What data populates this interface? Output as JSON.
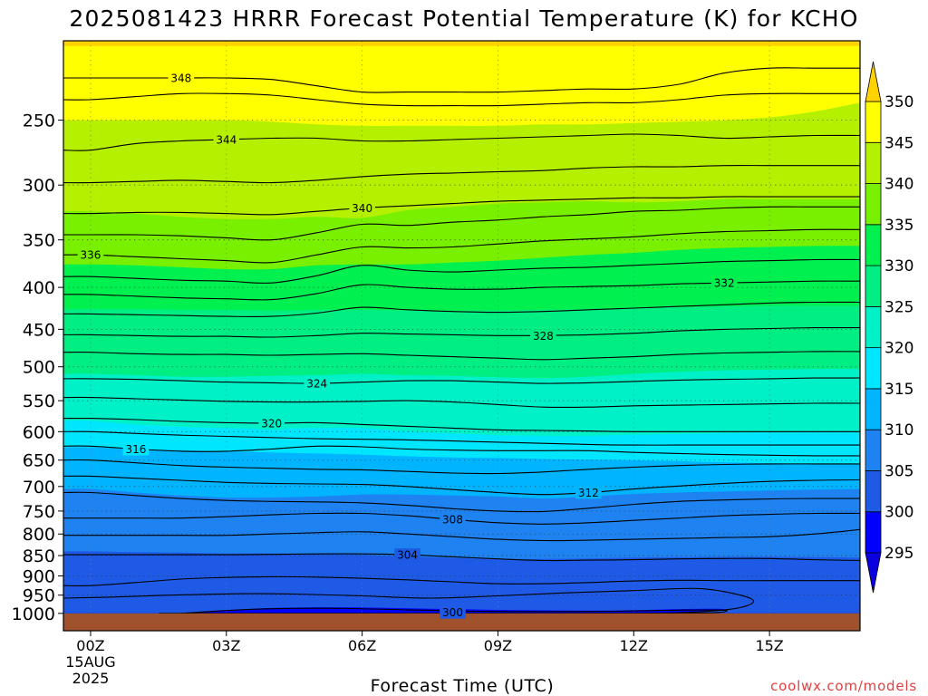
{
  "chart_data": {
    "type": "heatmap",
    "title": "2025081423 HRRR Forecast Potential Temperature (K) for KCHO",
    "xlabel": "Forecast Time (UTC)",
    "ylabel": "",
    "credit": "coolwx.com/models",
    "x_ticks": [
      {
        "hour": 0,
        "label": "00Z",
        "sub": [
          "15AUG",
          "2025"
        ]
      },
      {
        "hour": 3,
        "label": "03Z"
      },
      {
        "hour": 6,
        "label": "06Z"
      },
      {
        "hour": 9,
        "label": "09Z"
      },
      {
        "hour": 12,
        "label": "12Z"
      },
      {
        "hour": 15,
        "label": "15Z"
      }
    ],
    "xlim": [
      -0.6,
      17.0
    ],
    "y_scale": "log",
    "y_inverted": true,
    "ylim": [
      1050,
      200
    ],
    "y_ticks": [
      250,
      300,
      350,
      400,
      450,
      500,
      550,
      600,
      650,
      700,
      750,
      800,
      850,
      900,
      950,
      1000
    ],
    "ground_pressure": 1000,
    "ground_color": "#a0522d",
    "colorbar": {
      "levels": [
        295,
        300,
        305,
        310,
        315,
        320,
        325,
        330,
        335,
        340,
        345,
        350
      ],
      "colors": [
        "#0a00e0",
        "#0000ff",
        "#1e5ae6",
        "#1e82f0",
        "#00b4ff",
        "#00e6ff",
        "#00f0c8",
        "#00ee82",
        "#00f050",
        "#78f000",
        "#b4f000",
        "#ffff00",
        "#ffd200"
      ],
      "extend": "both"
    },
    "bands": [
      {
        "theta": 350,
        "p": [
          203,
          203,
          203,
          203,
          203,
          203,
          203,
          203,
          203,
          203,
          203,
          203,
          203,
          203,
          203,
          203,
          203,
          203
        ]
      },
      {
        "theta": 345,
        "p": [
          250,
          250,
          250,
          250,
          251,
          253,
          254,
          254,
          254,
          254,
          253,
          253,
          252,
          251,
          250,
          248,
          244,
          238
        ]
      },
      {
        "theta": 340,
        "p": [
          323,
          325,
          328,
          330,
          330,
          328,
          329,
          322,
          319,
          316,
          315,
          314,
          315,
          314,
          312,
          312,
          312,
          312
        ]
      },
      {
        "theta": 335,
        "p": [
          375,
          376,
          378,
          380,
          380,
          376,
          375,
          375,
          373,
          371,
          368,
          365,
          363,
          360,
          358,
          357,
          356,
          356
        ]
      },
      {
        "theta": 330,
        "p": [
          425,
          425,
          426,
          426,
          427,
          426,
          426,
          427,
          427,
          427,
          426,
          425,
          424,
          423,
          422,
          421,
          421,
          421
        ]
      },
      {
        "theta": 325,
        "p": [
          510,
          512,
          514,
          514,
          513,
          512,
          510,
          512,
          513,
          515,
          516,
          514,
          510,
          507,
          505,
          504,
          503,
          503
        ]
      },
      {
        "theta": 320,
        "p": [
          582,
          588,
          592,
          594,
          595,
          594,
          594,
          600,
          603,
          606,
          607,
          607,
          605,
          604,
          602,
          601,
          600,
          600
        ]
      },
      {
        "theta": 315,
        "p": [
          627,
          630,
          632,
          634,
          636,
          638,
          640,
          643,
          645,
          646,
          648,
          649,
          650,
          652,
          654,
          656,
          657,
          658
        ]
      },
      {
        "theta": 310,
        "p": [
          705,
          712,
          718,
          722,
          722,
          720,
          716,
          716,
          718,
          720,
          724,
          720,
          715,
          712,
          710,
          708,
          706,
          705
        ]
      },
      {
        "theta": 305,
        "p": [
          840,
          842,
          843,
          845,
          845,
          846,
          848,
          852,
          856,
          858,
          858,
          857,
          855,
          854,
          853,
          853,
          854,
          855
        ]
      },
      {
        "theta": 300,
        "p": [
          1000,
          1000,
          1000,
          1000,
          1000,
          1000,
          1000,
          1000,
          1000,
          1000,
          1000,
          1000,
          1000,
          1000,
          1000,
          1000,
          1000,
          1000
        ]
      }
    ],
    "cold_pool_300": {
      "x": [
        1.8,
        3.0,
        4.0,
        5.5,
        7.5,
        9.5,
        11.5,
        13.0,
        14.0,
        13.2,
        11.0,
        8.0,
        5.0,
        3.0,
        2.0
      ],
      "p": [
        1000,
        992,
        985,
        983,
        987,
        991,
        992,
        988,
        988,
        998,
        1000,
        1000,
        1000,
        1000,
        1000
      ]
    },
    "contours": [
      {
        "theta": 348,
        "p": [
          222,
          222,
          222,
          222,
          223,
          227,
          231,
          231,
          231,
          231,
          230,
          229,
          229,
          226,
          219,
          216,
          216,
          216
        ],
        "label_x": 2.0
      },
      {
        "theta": 346,
        "p": [
          236,
          234,
          232,
          232,
          233,
          236,
          239,
          240,
          240,
          240,
          239,
          238,
          238,
          236,
          233,
          232,
          232,
          232
        ],
        "label_x": null
      },
      {
        "theta": 344,
        "p": [
          272,
          267,
          265,
          264,
          263,
          263,
          265,
          265,
          264,
          263,
          262,
          261,
          260,
          261,
          263,
          262,
          261,
          261
        ],
        "label_x": 3.0
      },
      {
        "theta": 342,
        "p": [
          298,
          297,
          296,
          297,
          298,
          296,
          293,
          291,
          290,
          289,
          288,
          286,
          285,
          285,
          284,
          284,
          284,
          284
        ],
        "label_x": null
      },
      {
        "theta": 340,
        "p": [
          325,
          324,
          324,
          325,
          326,
          323,
          320,
          318,
          316,
          314,
          313,
          312,
          311,
          311,
          310,
          310,
          310,
          310
        ],
        "label_x": 6.0
      },
      {
        "theta": 338,
        "p": [
          345,
          345,
          346,
          348,
          350,
          343,
          335,
          336,
          333,
          331,
          328,
          326,
          323,
          322,
          320,
          319,
          319,
          319
        ],
        "label_x": null
      },
      {
        "theta": 336,
        "p": [
          365,
          367,
          369,
          371,
          373,
          365,
          357,
          358,
          357,
          354,
          351,
          349,
          347,
          344,
          342,
          341,
          340,
          340
        ],
        "label_x": 0.0
      },
      {
        "theta": 334,
        "p": [
          388,
          390,
          392,
          393,
          395,
          387,
          376,
          381,
          383,
          381,
          379,
          378,
          376,
          374,
          372,
          371,
          370,
          370
        ],
        "label_x": null
      },
      {
        "theta": 332,
        "p": [
          408,
          410,
          412,
          413,
          414,
          407,
          397,
          400,
          402,
          402,
          400,
          399,
          398,
          396,
          395,
          394,
          393,
          393
        ],
        "label_x": 14.0
      },
      {
        "theta": 330,
        "p": [
          431,
          432,
          433,
          434,
          434,
          430,
          423,
          426,
          428,
          429,
          428,
          426,
          424,
          422,
          420,
          418,
          417,
          417
        ],
        "label_x": null
      },
      {
        "theta": 328,
        "p": [
          457,
          458,
          459,
          459,
          460,
          458,
          455,
          456,
          457,
          458,
          458,
          457,
          455,
          452,
          450,
          449,
          448,
          448
        ],
        "label_x": 10.0
      },
      {
        "theta": 326,
        "p": [
          480,
          482,
          483,
          483,
          484,
          483,
          482,
          484,
          486,
          488,
          490,
          488,
          486,
          483,
          481,
          480,
          479,
          479
        ],
        "label_x": null
      },
      {
        "theta": 324,
        "p": [
          517,
          518,
          520,
          522,
          523,
          524,
          522,
          520,
          520,
          522,
          524,
          523,
          521,
          519,
          518,
          517,
          516,
          516
        ],
        "label_x": 5.0
      },
      {
        "theta": 322,
        "p": [
          545,
          547,
          549,
          551,
          552,
          552,
          551,
          550,
          552,
          556,
          560,
          560,
          558,
          557,
          556,
          555,
          554,
          554
        ],
        "label_x": null
      },
      {
        "theta": 320,
        "p": [
          578,
          580,
          583,
          585,
          586,
          585,
          588,
          591,
          594,
          597,
          598,
          599,
          600,
          600,
          600,
          600,
          600,
          600
        ],
        "label_x": 4.0
      },
      {
        "theta": 318,
        "p": [
          600,
          603,
          606,
          608,
          610,
          612,
          613,
          614,
          616,
          618,
          620,
          622,
          623,
          623,
          623,
          623,
          623,
          623
        ],
        "label_x": null
      },
      {
        "theta": 316,
        "p": [
          625,
          630,
          634,
          634,
          630,
          625,
          626,
          630,
          632,
          633,
          633,
          633,
          636,
          638,
          640,
          641,
          642,
          642
        ],
        "label_x": 1.0
      },
      {
        "theta": 314,
        "p": [
          650,
          655,
          660,
          663,
          665,
          667,
          668,
          671,
          674,
          675,
          672,
          667,
          663,
          660,
          658,
          657,
          657,
          657
        ],
        "label_x": null
      },
      {
        "theta": 312,
        "p": [
          680,
          684,
          688,
          692,
          694,
          695,
          696,
          700,
          706,
          712,
          716,
          712,
          705,
          699,
          694,
          690,
          688,
          687
        ],
        "label_x": 11.0
      },
      {
        "theta": 310,
        "p": [
          712,
          718,
          724,
          728,
          730,
          731,
          733,
          738,
          745,
          750,
          751,
          744,
          736,
          730,
          727,
          725,
          724,
          724
        ],
        "label_x": null
      },
      {
        "theta": 308,
        "p": [
          765,
          765,
          765,
          762,
          758,
          755,
          755,
          760,
          768,
          775,
          778,
          775,
          770,
          765,
          760,
          757,
          755,
          755
        ],
        "label_x": 8.0
      },
      {
        "theta": 306,
        "p": [
          803,
          803,
          803,
          803,
          800,
          797,
          795,
          800,
          806,
          812,
          815,
          814,
          812,
          810,
          808,
          806,
          800,
          790
        ],
        "label_x": null
      },
      {
        "theta": 304,
        "p": [
          848,
          848,
          848,
          848,
          847,
          846,
          846,
          848,
          853,
          858,
          862,
          861,
          860,
          858,
          857,
          857,
          860,
          862
        ],
        "label_x": 7.0
      },
      {
        "theta": 302,
        "p": [
          925,
          917,
          908,
          904,
          902,
          903,
          906,
          910,
          915,
          920,
          920,
          917,
          913,
          911,
          912,
          912,
          912,
          912
        ],
        "label_x": null
      }
    ],
    "near_surface": [
      {
        "theta": 302,
        "x": [
          -0.6,
          0.5,
          1.5,
          2.5,
          3.5,
          4.5,
          6.0,
          7.5,
          9.0,
          10.5,
          12.0,
          13.5,
          14.6,
          14.3,
          13.0,
          11.0,
          9.0,
          7.0,
          5.0,
          3.0,
          1.5
        ],
        "p": [
          958,
          955,
          951,
          948,
          946,
          947,
          952,
          958,
          952,
          944,
          938,
          933,
          960,
          985,
          998,
          1000,
          1000,
          1000,
          1000,
          1000,
          1000
        ],
        "label_x": null
      },
      {
        "theta": 300,
        "x": [
          2.0,
          3.0,
          4.0,
          5.5,
          7.0,
          8.5,
          10.0,
          11.5,
          13.0,
          14.0,
          13.8,
          12.5,
          11.0
        ],
        "p": [
          1000,
          992,
          987,
          986,
          990,
          994,
          995,
          994,
          991,
          991,
          998,
          1000,
          1000
        ],
        "label_x": 8.0
      }
    ]
  }
}
